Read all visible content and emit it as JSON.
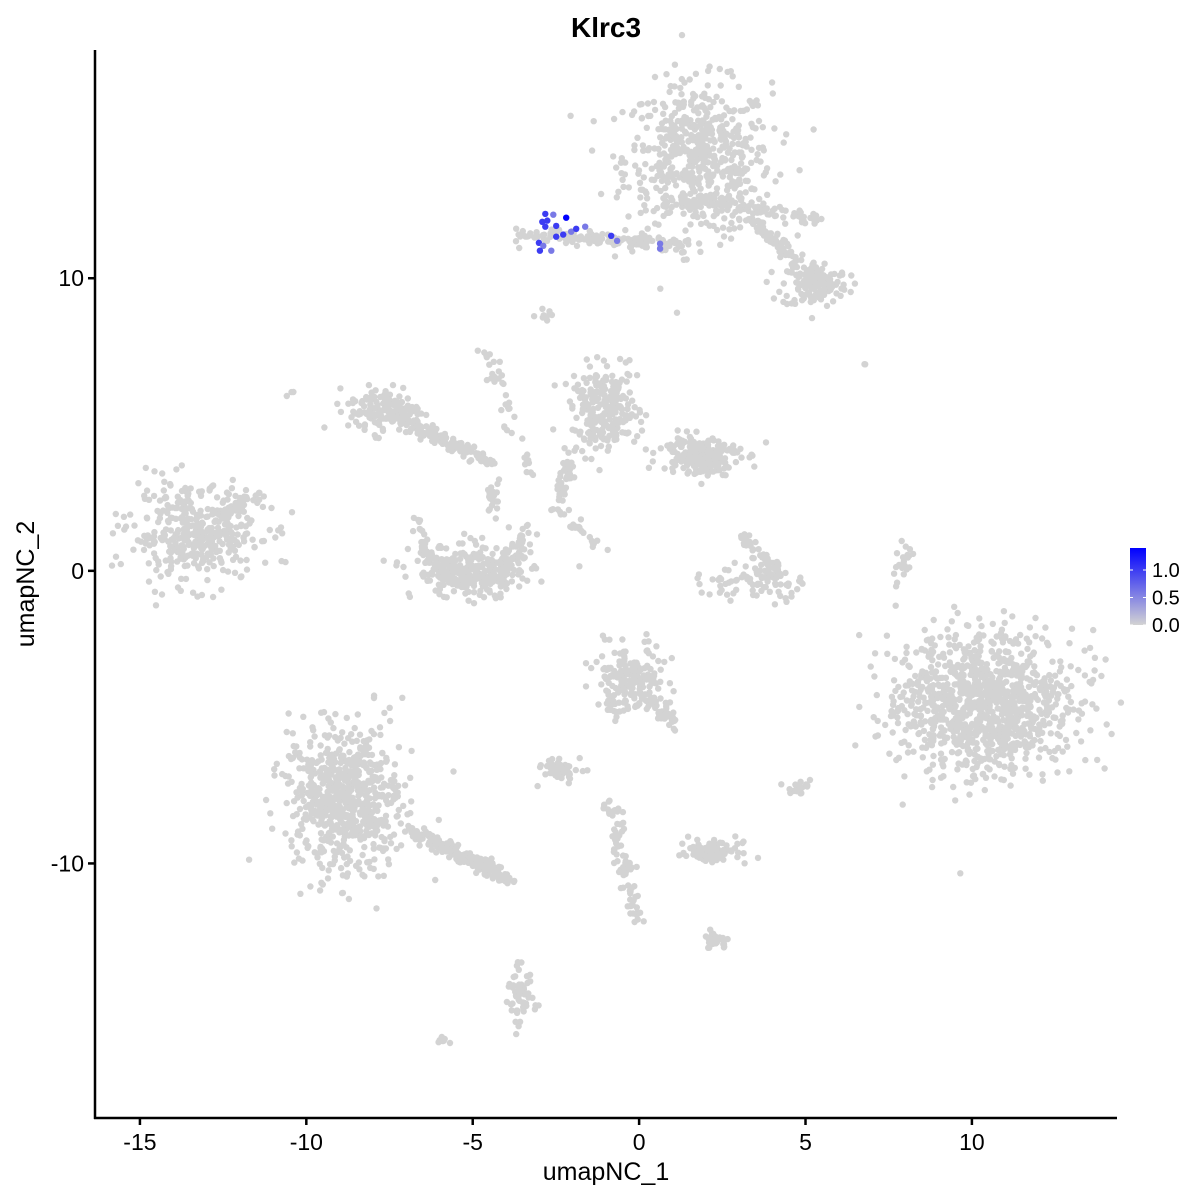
{
  "chart_data": {
    "type": "scatter",
    "title": "Klrc3",
    "xlabel": "umapNC_1",
    "ylabel": "umapNC_2",
    "xlim": [
      -16.35,
      14.36
    ],
    "ylim": [
      -18.7,
      17.8
    ],
    "xticks": [
      -15,
      -10,
      -5,
      0,
      5,
      10
    ],
    "yticks": [
      -10,
      0,
      10
    ],
    "xtick_labels": [
      "-15",
      "-10",
      "-5",
      "0",
      "5",
      "10"
    ],
    "ytick_labels": [
      "-10",
      "0",
      "10"
    ],
    "grid": false,
    "base_color": "#d3d3d3",
    "high_color": "#0000ff",
    "legend": {
      "placement": "right",
      "type": "colorbar",
      "range": [
        0,
        1.4
      ],
      "ticks": [
        0,
        0.5,
        1.0
      ],
      "tick_labels": [
        "0.0",
        "0.5",
        "1.0"
      ]
    },
    "clusters_approx": [
      {
        "center": [
          1.77,
          14.05
        ],
        "sd": [
          1.1,
          1.3
        ],
        "n": 600
      },
      {
        "center": [
          5.29,
          9.78
        ],
        "sd": [
          0.5,
          0.4
        ],
        "n": 120
      },
      {
        "from": [
          3.03,
          12.34
        ],
        "to": [
          5.74,
          9.61
        ],
        "n": 120
      },
      {
        "from": [
          1.83,
          12.68
        ],
        "to": [
          5.44,
          12.0
        ],
        "n": 80
      },
      {
        "from": [
          -3.58,
          11.49
        ],
        "to": [
          1.53,
          11.15
        ],
        "n": 150
      },
      {
        "center": [
          -2.82,
          8.68
        ],
        "sd": [
          0.15,
          0.1
        ],
        "n": 10
      },
      {
        "center": [
          -13.34,
          1.23
        ],
        "sd": [
          1.0,
          0.8
        ],
        "n": 400
      },
      {
        "from": [
          -12.5,
          1.8
        ],
        "to": [
          -11.39,
          2.77
        ],
        "n": 30
      },
      {
        "center": [
          -7.63,
          5.5
        ],
        "sd": [
          0.55,
          0.4
        ],
        "n": 150
      },
      {
        "from": [
          -7.18,
          5.16
        ],
        "to": [
          -4.48,
          3.79
        ],
        "n": 150
      },
      {
        "from": [
          -4.63,
          7.56
        ],
        "to": [
          -3.28,
          3.45
        ],
        "n": 40
      },
      {
        "from": [
          -4.4,
          3.2
        ],
        "to": [
          -4.4,
          1.8
        ],
        "n": 20
      },
      {
        "center": [
          -5.0,
          0.0
        ],
        "sd": [
          0.9,
          0.45
        ],
        "n": 260
      },
      {
        "arc_center": [
          -5.05,
          1.6
        ],
        "radii": [
          1.6,
          2.0
        ],
        "n": 160
      },
      {
        "center": [
          -1.02,
          5.5
        ],
        "sd": [
          0.5,
          0.7
        ],
        "n": 250
      },
      {
        "center": [
          1.83,
          3.97
        ],
        "sd": [
          0.6,
          0.35
        ],
        "n": 200
      },
      {
        "from": [
          -2.07,
          4.14
        ],
        "to": [
          -2.37,
          2.43
        ],
        "n": 40
      },
      {
        "from": [
          -2.6,
          2.2
        ],
        "to": [
          -1.2,
          0.9
        ],
        "n": 25
      },
      {
        "center": [
          3.49,
          -0.48
        ],
        "sd": [
          0.8,
          0.25
        ],
        "n": 80
      },
      {
        "from": [
          3.03,
          1.23
        ],
        "to": [
          4.24,
          -0.14
        ],
        "n": 50
      },
      {
        "center": [
          10.4,
          -4.58
        ],
        "sd": [
          1.3,
          1.2
        ],
        "n": 1100
      },
      {
        "center": [
          -0.27,
          -3.73
        ],
        "sd": [
          0.5,
          0.55
        ],
        "n": 200
      },
      {
        "from": [
          0.3,
          -4.3
        ],
        "to": [
          1.23,
          -5.44
        ],
        "n": 40
      },
      {
        "center": [
          -8.83,
          -7.83
        ],
        "sd": [
          0.85,
          1.2
        ],
        "n": 700
      },
      {
        "from": [
          -6.88,
          -8.85
        ],
        "to": [
          -3.88,
          -10.56
        ],
        "n": 200
      },
      {
        "center": [
          -2.37,
          -6.8
        ],
        "sd": [
          0.3,
          0.2
        ],
        "n": 60
      },
      {
        "center": [
          2.28,
          -9.54
        ],
        "sd": [
          0.45,
          0.2
        ],
        "n": 90
      },
      {
        "from": [
          -0.87,
          -7.83
        ],
        "to": [
          -0.12,
          -11.93
        ],
        "n": 80
      },
      {
        "center": [
          2.28,
          -12.6
        ],
        "sd": [
          0.2,
          0.15
        ],
        "n": 30
      },
      {
        "center": [
          -3.58,
          -14.67
        ],
        "sd": [
          0.2,
          0.5
        ],
        "n": 60
      },
      {
        "center": [
          4.84,
          -7.32
        ],
        "sd": [
          0.2,
          0.15
        ],
        "n": 20
      },
      {
        "from": [
          8.14,
          0.89
        ],
        "to": [
          7.69,
          -0.31
        ],
        "n": 20
      },
      {
        "center": [
          -5.98,
          -16.0
        ],
        "sd": [
          0.15,
          0.1
        ],
        "n": 8
      },
      {
        "center": [
          -10.5,
          6.1
        ],
        "sd": [
          0.1,
          0.1
        ],
        "n": 3
      },
      {
        "center": [
          6.8,
          7.1
        ],
        "sd": [
          0.05,
          0.05
        ],
        "n": 2
      }
    ],
    "expressing_points": [
      {
        "x": -2.82,
        "y": 12.2,
        "value": 1.0
      },
      {
        "x": -2.58,
        "y": 12.17,
        "value": 0.6
      },
      {
        "x": -2.19,
        "y": 12.07,
        "value": 1.4
      },
      {
        "x": -2.91,
        "y": 11.93,
        "value": 1.0
      },
      {
        "x": -2.76,
        "y": 11.97,
        "value": 1.0
      },
      {
        "x": -2.82,
        "y": 11.76,
        "value": 1.0
      },
      {
        "x": -2.49,
        "y": 11.79,
        "value": 1.0
      },
      {
        "x": -2.49,
        "y": 11.42,
        "value": 1.0
      },
      {
        "x": -2.28,
        "y": 11.49,
        "value": 1.0
      },
      {
        "x": -2.04,
        "y": 11.59,
        "value": 0.6
      },
      {
        "x": -1.89,
        "y": 11.69,
        "value": 1.0
      },
      {
        "x": -1.62,
        "y": 11.76,
        "value": 0.6
      },
      {
        "x": -0.84,
        "y": 11.45,
        "value": 1.0
      },
      {
        "x": -0.66,
        "y": 11.28,
        "value": 0.6
      },
      {
        "x": -3.01,
        "y": 11.21,
        "value": 1.0
      },
      {
        "x": -2.88,
        "y": 11.11,
        "value": 0.6
      },
      {
        "x": -2.98,
        "y": 10.94,
        "value": 1.0
      },
      {
        "x": -2.64,
        "y": 10.94,
        "value": 0.6
      },
      {
        "x": 0.63,
        "y": 11.18,
        "value": 0.6
      },
      {
        "x": 0.63,
        "y": 11.01,
        "value": 0.6
      }
    ]
  }
}
